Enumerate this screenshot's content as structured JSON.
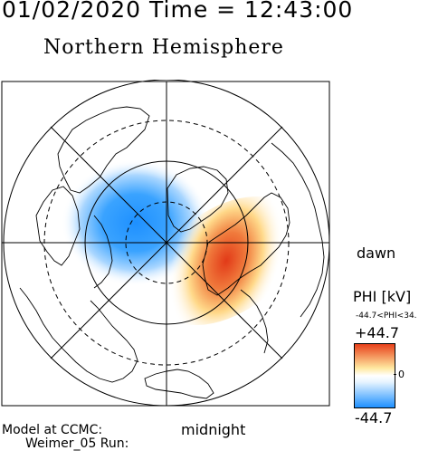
{
  "timestamp": "01/02/2020 Time = 12:43:00",
  "title": "Northern Hemisphere",
  "labels": {
    "dawn": "dawn",
    "midnight": "midnight",
    "model_line1": "Model at CCMC:",
    "model_line2": "Weimer_05 Run:"
  },
  "colorbar": {
    "label": "PHI [kV]",
    "range_text": "-44.7<PHI<34.",
    "max_label": "+44.7",
    "zero_label": "0",
    "min_label": "-44.7",
    "colors": [
      "#1e90ff",
      "#e6f4ff",
      "#ffffff",
      "#ffe9a0",
      "#e8401a"
    ]
  },
  "map_data": {
    "type": "polar-potential-map",
    "hemisphere": "north",
    "potential_min_kV": -44.7,
    "potential_max_kV": 34.0,
    "colorbar_range_kV": [
      -44.7,
      44.7
    ],
    "negative_cell": "dusk side (left), peak near -44.7 kV",
    "positive_cell": "dawn side (right-lower), peak near +34 kV",
    "latitude_circles": [
      80,
      70,
      60,
      50
    ],
    "meridian_lines": 12
  }
}
